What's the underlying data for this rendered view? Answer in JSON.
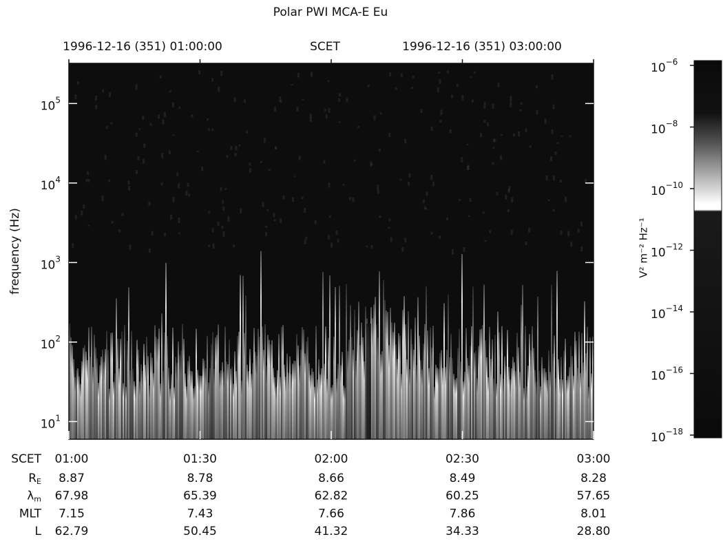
{
  "chart_data": {
    "type": "spectrogram",
    "title": "Polar PWI MCA-E Eu",
    "top_labels": [
      "1996-12-16 (351) 01:00:00",
      "SCET",
      "1996-12-16 (351) 03:00:00"
    ],
    "ylabel": "frequency (Hz)",
    "xlim": [
      60,
      180
    ],
    "xticks": [
      {
        "value": 60,
        "label": "01:00"
      },
      {
        "value": 90,
        "label": "01:30"
      },
      {
        "value": 120,
        "label": "02:00"
      },
      {
        "value": 150,
        "label": "02:30"
      },
      {
        "value": 180,
        "label": "03:00"
      }
    ],
    "ylim": [
      6,
      320000
    ],
    "yscale": "log",
    "yticks": [
      {
        "value": 10,
        "label": "10",
        "exponent": "1"
      },
      {
        "value": 100,
        "label": "10",
        "exponent": "2"
      },
      {
        "value": 1000,
        "label": "10",
        "exponent": "3"
      },
      {
        "value": 10000,
        "label": "10",
        "exponent": "4"
      },
      {
        "value": 100000,
        "label": "10",
        "exponent": "5"
      }
    ],
    "colorbar": {
      "label": "V² m⁻² Hz⁻¹",
      "lim": [
        1e-18,
        1e-06
      ],
      "scale": "log",
      "ticks": [
        {
          "value": 1e-06,
          "label": "10",
          "exponent": "−6"
        },
        {
          "value": 1e-08,
          "label": "10",
          "exponent": "−8"
        },
        {
          "value": 1e-10,
          "label": "10",
          "exponent": "−10"
        },
        {
          "value": 1e-12,
          "label": "10",
          "exponent": "−12"
        },
        {
          "value": 1e-14,
          "label": "10",
          "exponent": "−14"
        },
        {
          "value": 1e-16,
          "label": "10",
          "exponent": "−16"
        },
        {
          "value": 1e-18,
          "label": "10",
          "exponent": "−18"
        }
      ]
    },
    "ephemeris_time_label": "SCET",
    "ephemeris": [
      {
        "label": "R",
        "sub": "E",
        "values": [
          "8.87",
          "8.78",
          "8.66",
          "8.49",
          "8.28"
        ]
      },
      {
        "label": "λ",
        "sub": "m",
        "values": [
          "67.98",
          "65.39",
          "62.82",
          "60.25",
          "57.65"
        ]
      },
      {
        "label": "MLT",
        "sub": "",
        "values": [
          "7.15",
          "7.43",
          "7.66",
          "7.86",
          "8.01"
        ]
      },
      {
        "label": "L",
        "sub": "",
        "values": [
          "62.79",
          "50.45",
          "41.32",
          "34.33",
          "28.80"
        ]
      }
    ]
  }
}
